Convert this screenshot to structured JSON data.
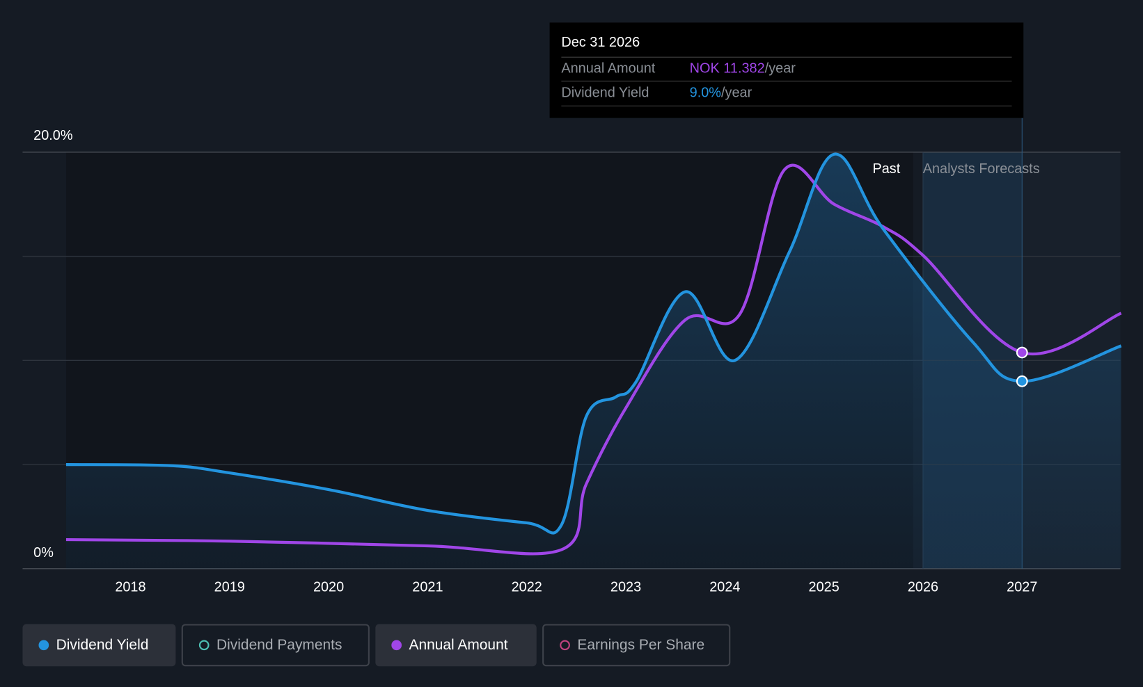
{
  "chart_data": {
    "type": "line",
    "y_axis": {
      "ticks": [
        "0%",
        "20.0%"
      ],
      "min": 0,
      "max": 20,
      "unit": "%"
    },
    "x_axis": {
      "ticks": [
        "2018",
        "2019",
        "2020",
        "2021",
        "2022",
        "2023",
        "2024",
        "2025",
        "2026",
        "2027"
      ],
      "min": 2017.35,
      "max": 2028.0
    },
    "regions": {
      "past_label": "Past",
      "forecast_label": "Analysts Forecasts",
      "past_end": 2025.9,
      "forecast_start": 2026.0,
      "forecast_highlight_end": 2027.0
    },
    "series": [
      {
        "name": "Dividend Yield",
        "unit": "%",
        "color": "#2394df",
        "points": [
          [
            2017.35,
            5.0
          ],
          [
            2018.4,
            4.95
          ],
          [
            2019,
            4.6
          ],
          [
            2020,
            3.8
          ],
          [
            2021,
            2.8
          ],
          [
            2022,
            2.2
          ],
          [
            2022.35,
            2.1
          ],
          [
            2022.6,
            7.3
          ],
          [
            2022.9,
            8.25
          ],
          [
            2023.1,
            8.95
          ],
          [
            2023.6,
            13.3
          ],
          [
            2024.1,
            10.0
          ],
          [
            2024.65,
            15.2
          ],
          [
            2025.1,
            19.9
          ],
          [
            2025.6,
            16.3
          ],
          [
            2026.5,
            10.9
          ],
          [
            2027.0,
            9.0
          ],
          [
            2028.0,
            10.7
          ]
        ]
      },
      {
        "name": "Annual Amount",
        "unit": "NOK",
        "color": "#a046e8",
        "axis_max_nok": 21.93,
        "points": [
          [
            2017.35,
            1.53
          ],
          [
            2019,
            1.45
          ],
          [
            2021,
            1.2
          ],
          [
            2022.35,
            1.0
          ],
          [
            2022.6,
            4.45
          ],
          [
            2023.0,
            8.46
          ],
          [
            2023.6,
            13.1
          ],
          [
            2024.15,
            13.4
          ],
          [
            2024.6,
            21.0
          ],
          [
            2025.1,
            19.2
          ],
          [
            2025.6,
            18.0
          ],
          [
            2026.0,
            16.5
          ],
          [
            2027.0,
            11.382
          ],
          [
            2028.0,
            13.45
          ]
        ]
      }
    ]
  },
  "tooltip": {
    "date": "Dec 31 2026",
    "rows": [
      {
        "label": "Annual Amount",
        "value": "NOK 11.382",
        "suffix": "/year",
        "color": "#a046e8"
      },
      {
        "label": "Dividend Yield",
        "value": "9.0%",
        "suffix": "/year",
        "color": "#2394df"
      }
    ]
  },
  "legend": [
    {
      "label": "Dividend Yield",
      "active": true,
      "color": "#2394df"
    },
    {
      "label": "Dividend Payments",
      "active": false,
      "color": "#4ec1b5"
    },
    {
      "label": "Annual Amount",
      "active": true,
      "color": "#a046e8"
    },
    {
      "label": "Earnings Per Share",
      "active": false,
      "color": "#c2437f"
    }
  ]
}
